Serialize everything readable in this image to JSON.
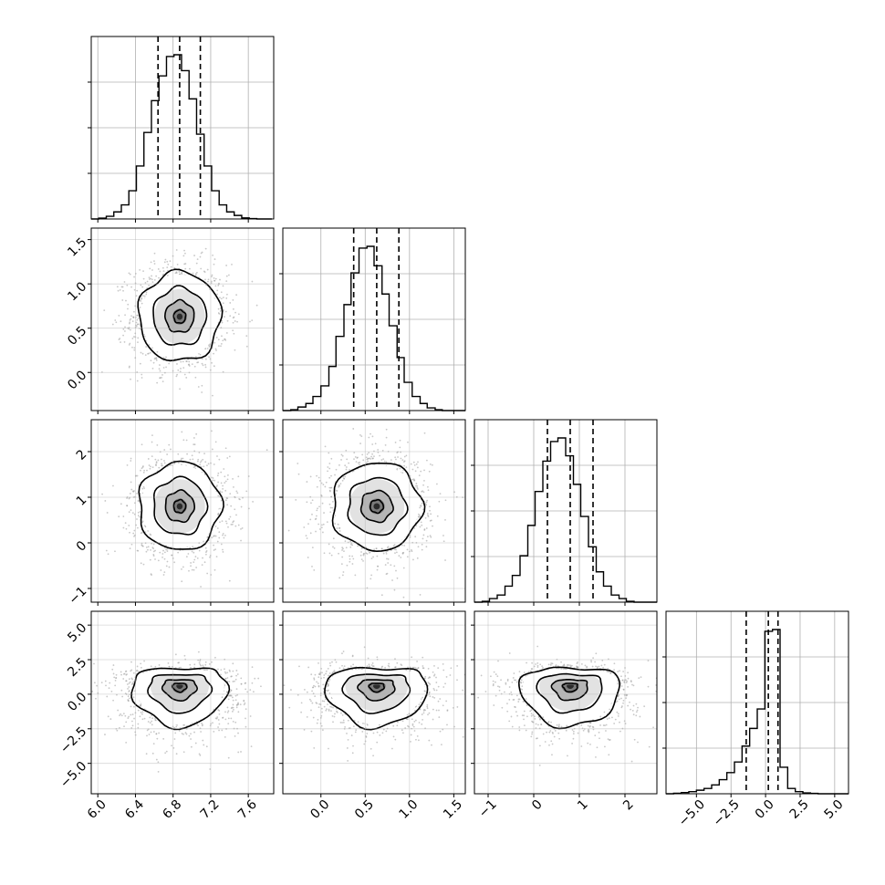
{
  "chart_data": {
    "type": "corner",
    "parameters": [
      {
        "range": [
          5.93,
          7.87
        ],
        "ticks": [
          6.0,
          6.4,
          6.8,
          7.2,
          7.6
        ],
        "tick_labels": [
          "6.0",
          "6.4",
          "6.8",
          "7.2",
          "7.6"
        ],
        "quantiles": [
          6.64,
          6.87,
          7.09
        ],
        "truth": 6.87,
        "hist": {
          "bins": [
            5.93,
            6.01,
            6.09,
            6.17,
            6.25,
            6.33,
            6.41,
            6.49,
            6.57,
            6.65,
            6.73,
            6.81,
            6.89,
            6.97,
            7.05,
            7.13,
            7.21,
            7.29,
            7.37,
            7.45,
            7.53,
            7.61,
            7.69,
            7.77,
            7.85
          ],
          "counts": [
            0.0,
            0.005,
            0.015,
            0.04,
            0.08,
            0.16,
            0.3,
            0.49,
            0.67,
            0.81,
            0.92,
            0.93,
            0.84,
            0.68,
            0.48,
            0.3,
            0.16,
            0.08,
            0.04,
            0.02,
            0.006,
            0.002,
            0.0,
            0.0
          ]
        }
      },
      {
        "range": [
          -0.43,
          1.63
        ],
        "ticks": [
          0.0,
          0.5,
          1.0,
          1.5
        ],
        "tick_labels": [
          "0.0",
          "0.5",
          "1.0",
          "1.5"
        ],
        "quantiles": [
          0.37,
          0.63,
          0.88
        ],
        "truth": 0.63,
        "hist": {
          "bins": [
            -0.43,
            -0.34,
            -0.26,
            -0.17,
            -0.09,
            0.0,
            0.09,
            0.17,
            0.26,
            0.34,
            0.43,
            0.52,
            0.6,
            0.69,
            0.77,
            0.86,
            0.94,
            1.03,
            1.12,
            1.2,
            1.29,
            1.37,
            1.46,
            1.54,
            1.63
          ],
          "counts": [
            0.0,
            0.005,
            0.02,
            0.04,
            0.08,
            0.14,
            0.25,
            0.42,
            0.6,
            0.78,
            0.92,
            0.93,
            0.82,
            0.66,
            0.48,
            0.3,
            0.16,
            0.08,
            0.04,
            0.015,
            0.005,
            0.0,
            0.0,
            0.0
          ]
        }
      },
      {
        "range": [
          -1.3,
          2.7
        ],
        "ticks": [
          -1,
          0,
          1,
          2
        ],
        "tick_labels": [
          "−1",
          "0",
          "1",
          "2"
        ],
        "quantiles": [
          0.3,
          0.8,
          1.3
        ],
        "truth": 1.0,
        "hist": {
          "bins": [
            -1.3,
            -1.13,
            -0.97,
            -0.8,
            -0.63,
            -0.47,
            -0.3,
            -0.13,
            0.03,
            0.2,
            0.37,
            0.53,
            0.7,
            0.87,
            1.03,
            1.2,
            1.37,
            1.53,
            1.7,
            1.87,
            2.03,
            2.2,
            2.37,
            2.53,
            2.7
          ],
          "counts": [
            0.0,
            0.005,
            0.02,
            0.04,
            0.09,
            0.15,
            0.26,
            0.43,
            0.62,
            0.79,
            0.9,
            0.92,
            0.82,
            0.66,
            0.48,
            0.31,
            0.17,
            0.09,
            0.04,
            0.02,
            0.005,
            0.0,
            0.0,
            0.0
          ]
        }
      },
      {
        "range": [
          -7.2,
          6.0
        ],
        "ticks": [
          -5.0,
          -2.5,
          0.0,
          2.5,
          5.0
        ],
        "tick_labels": [
          "−5.0",
          "−2.5",
          "0.0",
          "2.5",
          "5.0"
        ],
        "quantiles": [
          -1.4,
          0.2,
          0.9
        ],
        "truth": 0.6,
        "hist": {
          "bins": [
            -7.2,
            -6.65,
            -6.1,
            -5.55,
            -5.0,
            -4.45,
            -3.9,
            -3.35,
            -2.8,
            -2.25,
            -1.7,
            -1.15,
            -0.6,
            -0.05,
            0.5,
            1.05,
            1.6,
            2.15,
            2.7,
            3.25,
            3.8,
            4.35,
            4.9,
            5.45,
            6.0
          ],
          "counts": [
            0.0,
            0.003,
            0.007,
            0.012,
            0.02,
            0.03,
            0.05,
            0.08,
            0.12,
            0.18,
            0.27,
            0.37,
            0.48,
            0.92,
            0.93,
            0.15,
            0.03,
            0.012,
            0.005,
            0.002,
            0.0,
            0.0,
            0.0,
            0.0
          ]
        }
      }
    ],
    "hist_yticks": [
      0.25,
      0.5,
      0.75
    ],
    "pairs": [
      {
        "x": 0,
        "y": 1,
        "center": [
          6.87,
          0.63
        ],
        "spread": [
          0.19,
          0.22
        ],
        "skew_down": 0
      },
      {
        "x": 0,
        "y": 2,
        "center": [
          6.87,
          0.8
        ],
        "spread": [
          0.19,
          0.42
        ],
        "skew_down": 0
      },
      {
        "x": 1,
        "y": 2,
        "center": [
          0.63,
          0.8
        ],
        "spread": [
          0.22,
          0.42
        ],
        "skew_down": 0
      },
      {
        "x": 0,
        "y": 3,
        "center": [
          6.87,
          0.6
        ],
        "spread": [
          0.22,
          1.0
        ],
        "skew_down": 1.3
      },
      {
        "x": 1,
        "y": 3,
        "center": [
          0.63,
          0.6
        ],
        "spread": [
          0.25,
          1.0
        ],
        "skew_down": 1.3
      },
      {
        "x": 2,
        "y": 3,
        "center": [
          0.8,
          0.6
        ],
        "spread": [
          0.48,
          1.0
        ],
        "skew_down": 1.3
      }
    ],
    "contour_levels": [
      0.25,
      0.6,
      1.1,
      1.7
    ],
    "grid": true
  }
}
